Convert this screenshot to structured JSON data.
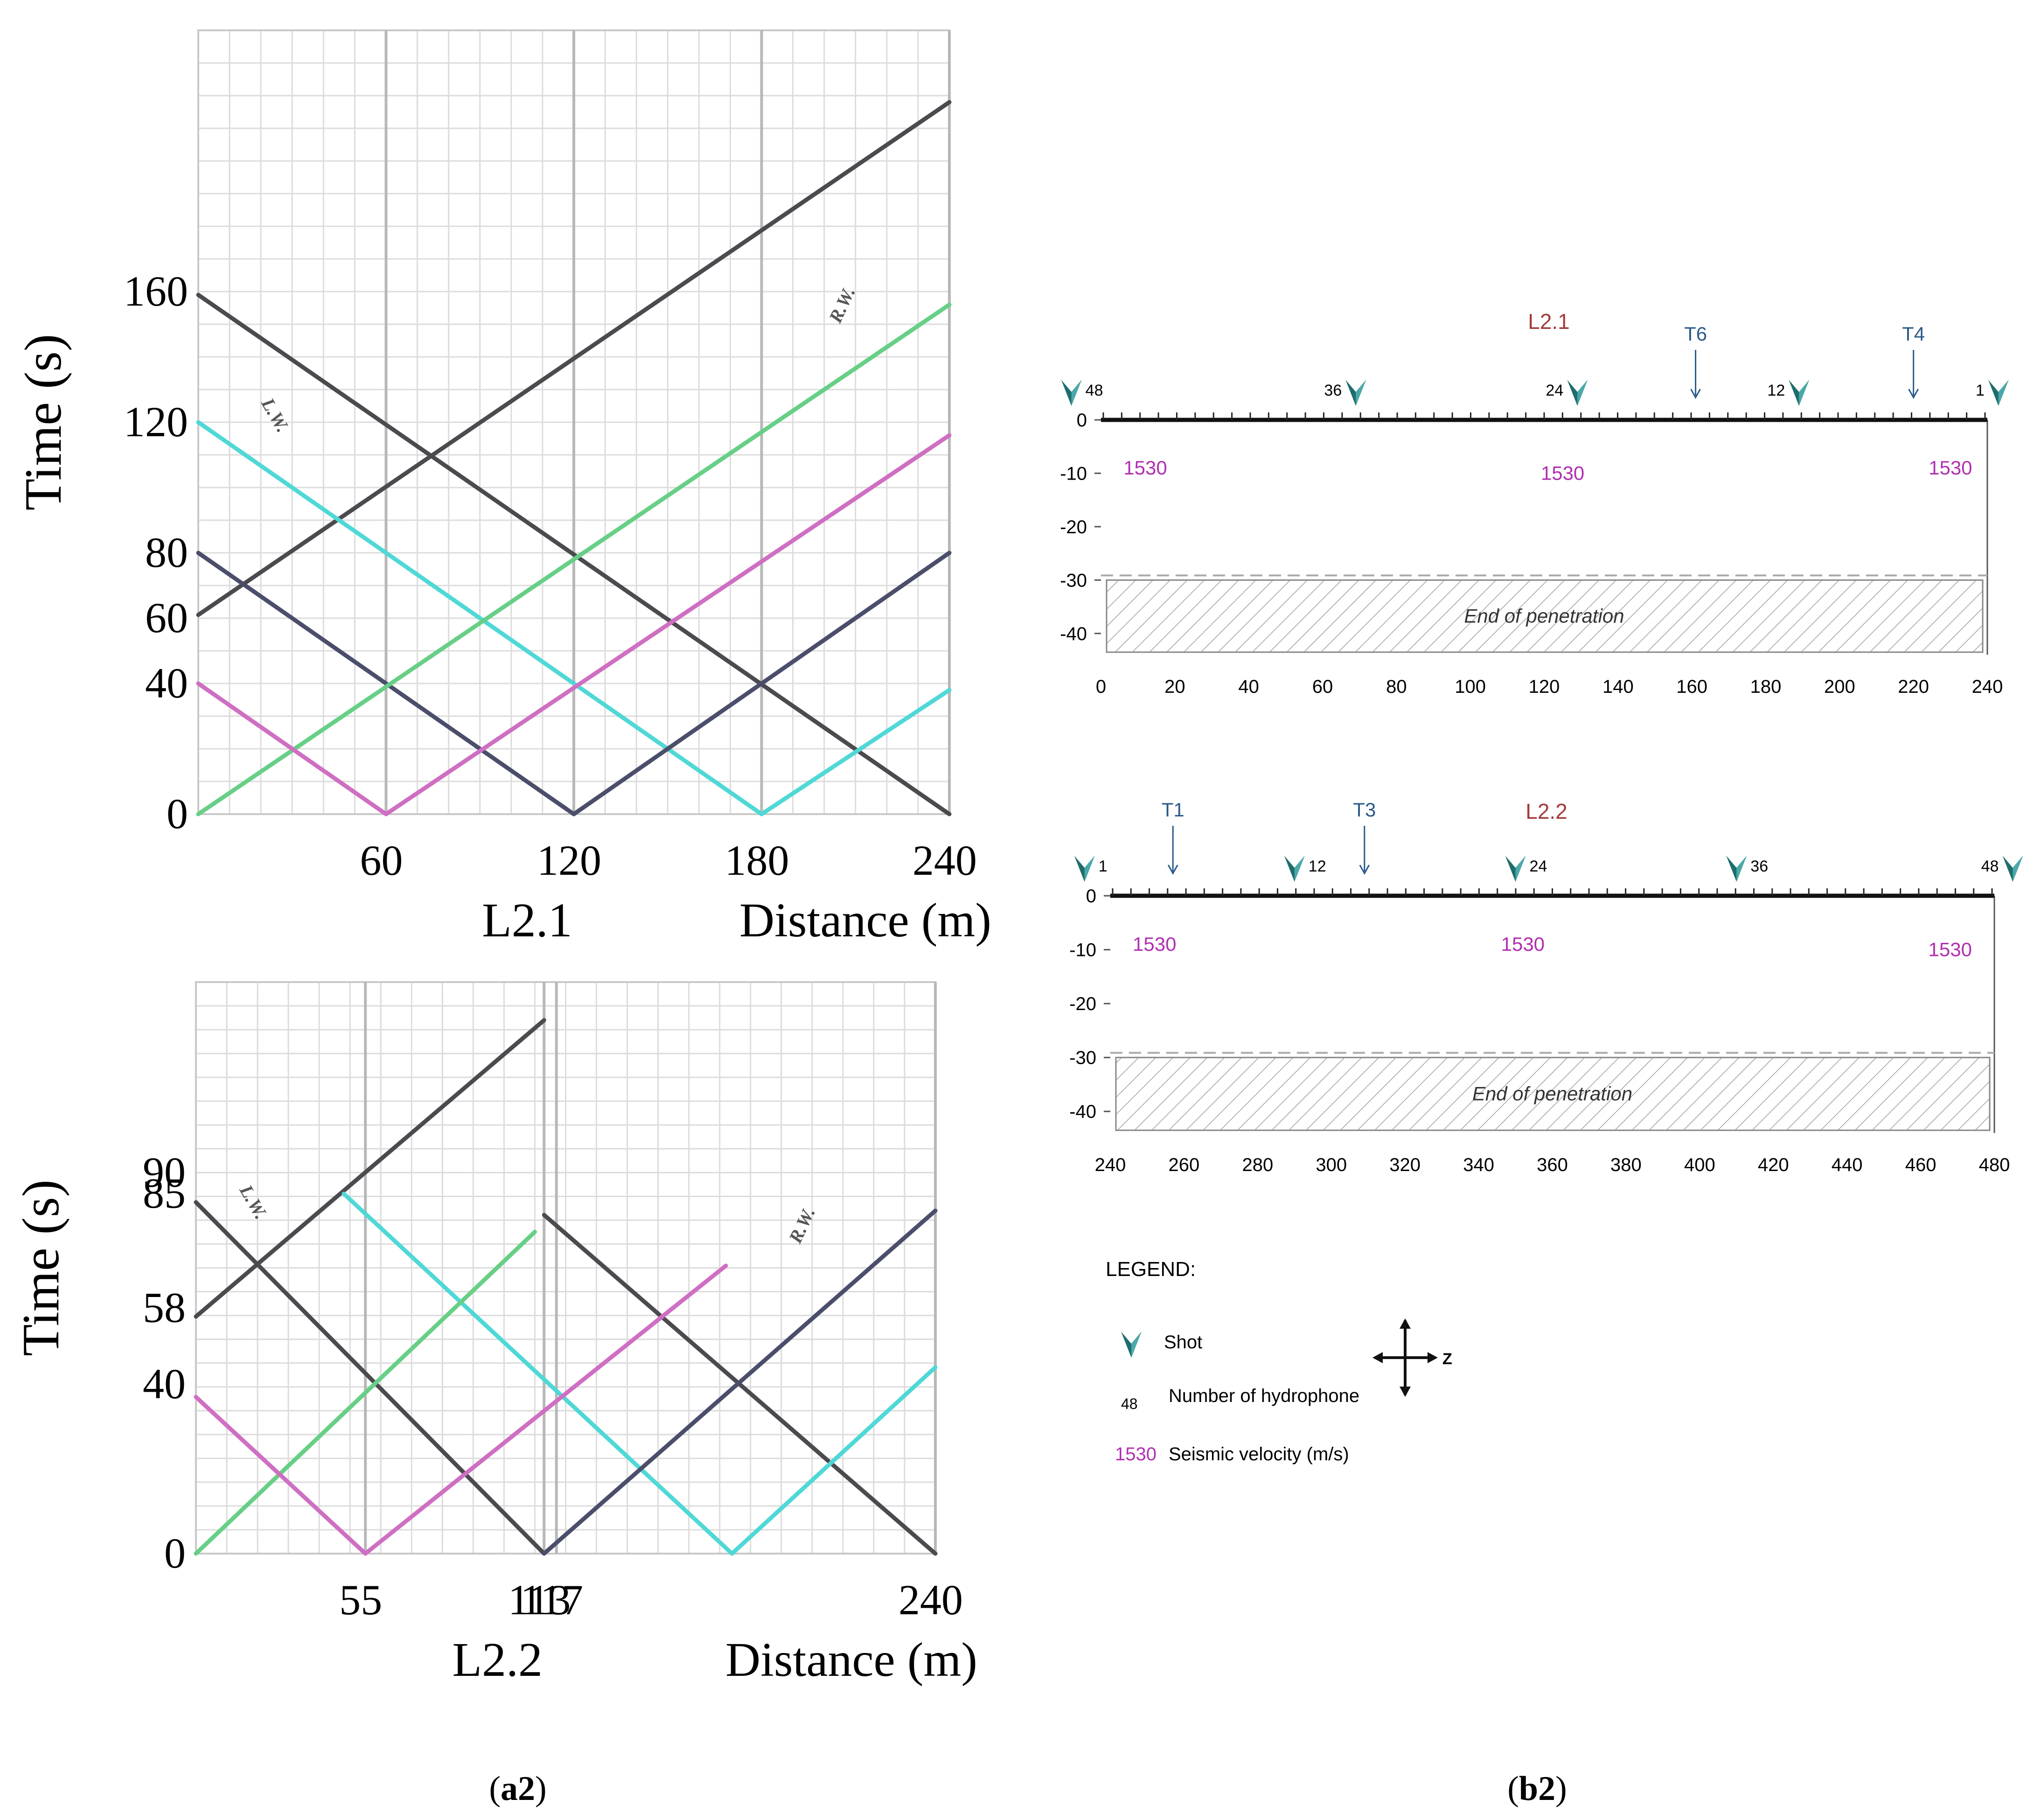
{
  "panel_labels": {
    "a": "(a2)",
    "b": "(b2)"
  },
  "colors": {
    "dark": "#4a4a4f",
    "navy": "#4b4e6b",
    "cyan": "#4fd8d6",
    "green": "#67cf86",
    "magenta": "#cf6fc2",
    "grid": "#dcdcdc",
    "vline": "#b8b8b8",
    "shot": "#1f6e6e",
    "velocity": "#b02fb0",
    "line_title": "#a33a3a",
    "marker_label": "#2a5a8a",
    "hatch": "#9a9a9a"
  },
  "chart_data": [
    {
      "type": "line",
      "id": "tt_L21",
      "title": "L2.1",
      "xlabel": "Distance (m)",
      "ylabel": "Time (s)",
      "xlim": [
        0,
        240
      ],
      "ylim": [
        0,
        240
      ],
      "x_ticks": [
        60,
        120,
        180,
        240
      ],
      "y_ticks": [
        0,
        40,
        60,
        80,
        120,
        160
      ],
      "annotations": [
        {
          "text": "L.W.",
          "x": 20,
          "y": 126,
          "rot": 60
        },
        {
          "text": "R.W.",
          "x": 205,
          "y": 150,
          "rot": -65
        }
      ],
      "series": [
        {
          "name": "dark-rising",
          "color": "dark",
          "x": [
            0,
            240
          ],
          "y": [
            61,
            218
          ]
        },
        {
          "name": "dark-falling",
          "color": "dark",
          "x": [
            0,
            240
          ],
          "y": [
            159,
            0
          ]
        },
        {
          "name": "cyan-falling",
          "color": "cyan",
          "x": [
            0,
            180
          ],
          "y": [
            120,
            0
          ]
        },
        {
          "name": "cyan-rising",
          "color": "cyan",
          "x": [
            180,
            240
          ],
          "y": [
            0,
            38
          ]
        },
        {
          "name": "navy-falling",
          "color": "navy",
          "x": [
            0,
            120
          ],
          "y": [
            80,
            0
          ]
        },
        {
          "name": "navy-rising",
          "color": "navy",
          "x": [
            120,
            240
          ],
          "y": [
            0,
            80
          ]
        },
        {
          "name": "green",
          "color": "green",
          "x": [
            0,
            240
          ],
          "y": [
            0,
            156
          ]
        },
        {
          "name": "magenta-falling",
          "color": "magenta",
          "x": [
            0,
            60
          ],
          "y": [
            40,
            0
          ]
        },
        {
          "name": "magenta-rising",
          "color": "magenta",
          "x": [
            60,
            240
          ],
          "y": [
            0,
            116
          ]
        }
      ]
    },
    {
      "type": "line",
      "id": "tt_L22",
      "title": "L2.2",
      "xlabel": "Distance (m)",
      "ylabel": "Time (s)",
      "xlim": [
        0,
        240
      ],
      "ylim": [
        0,
        135
      ],
      "x_ticks": [
        55,
        113,
        117,
        240
      ],
      "y_ticks": [
        0,
        40,
        58,
        85,
        90
      ],
      "annotations": [
        {
          "text": "L.W.",
          "x": 14,
          "y": 86,
          "rot": 60
        },
        {
          "text": "R.W.",
          "x": 196,
          "y": 73,
          "rot": -65
        }
      ],
      "series": [
        {
          "name": "dark-rising",
          "color": "dark",
          "x": [
            0,
            113
          ],
          "y": [
            56,
            126
          ]
        },
        {
          "name": "dark-falling",
          "color": "dark",
          "x": [
            0,
            113
          ],
          "y": [
            83,
            0
          ]
        },
        {
          "name": "dark-falling-2",
          "color": "dark",
          "x": [
            113,
            240
          ],
          "y": [
            80,
            0
          ]
        },
        {
          "name": "cyan-falling",
          "color": "cyan",
          "x": [
            48,
            174
          ],
          "y": [
            85,
            0
          ]
        },
        {
          "name": "cyan-rising",
          "color": "cyan",
          "x": [
            174,
            240
          ],
          "y": [
            0,
            44
          ]
        },
        {
          "name": "navy-rising",
          "color": "navy",
          "x": [
            113,
            240
          ],
          "y": [
            0,
            81
          ]
        },
        {
          "name": "green",
          "color": "green",
          "x": [
            0,
            110
          ],
          "y": [
            0,
            76
          ]
        },
        {
          "name": "magenta-falling",
          "color": "magenta",
          "x": [
            0,
            55
          ],
          "y": [
            37,
            0
          ]
        },
        {
          "name": "magenta-rising",
          "color": "magenta",
          "x": [
            55,
            172
          ],
          "y": [
            0,
            68
          ]
        }
      ]
    },
    {
      "type": "diagram",
      "id": "sec_L21",
      "title": "L2.1",
      "xlim": [
        0,
        240
      ],
      "ylim": [
        -45,
        0
      ],
      "x_ticks": [
        0,
        20,
        40,
        60,
        80,
        100,
        120,
        140,
        160,
        180,
        200,
        220,
        240
      ],
      "y_ticks": [
        0,
        -10,
        -20,
        -30,
        -40
      ],
      "end_of_penetration_depth": -30,
      "end_label": "End of penetration",
      "velocities": [
        {
          "x": 12,
          "y": -9,
          "text": "1530"
        },
        {
          "x": 125,
          "y": -10,
          "text": "1530"
        },
        {
          "x": 230,
          "y": -9,
          "text": "1530"
        }
      ],
      "shots": [
        {
          "x": -8,
          "label": "48"
        },
        {
          "x": 69,
          "label": "36"
        },
        {
          "x": 129,
          "label": "24"
        },
        {
          "x": 189,
          "label": "12"
        },
        {
          "x": 243,
          "label": "1"
        }
      ],
      "markers": [
        {
          "x": 161,
          "label": "T6"
        },
        {
          "x": 220,
          "label": "T4"
        }
      ]
    },
    {
      "type": "diagram",
      "id": "sec_L22",
      "title": "L2.2",
      "xlim": [
        240,
        480
      ],
      "ylim": [
        -45,
        0
      ],
      "x_ticks": [
        240,
        260,
        280,
        300,
        320,
        340,
        360,
        380,
        400,
        420,
        440,
        460,
        480
      ],
      "y_ticks": [
        0,
        -10,
        -20,
        -30,
        -40
      ],
      "end_of_penetration_depth": -30,
      "end_label": "End of penetration",
      "velocities": [
        {
          "x": 252,
          "y": -9,
          "text": "1530"
        },
        {
          "x": 352,
          "y": -9,
          "text": "1530"
        },
        {
          "x": 468,
          "y": -10,
          "text": "1530"
        }
      ],
      "shots": [
        {
          "x": 233,
          "label": "1"
        },
        {
          "x": 290,
          "label": "12"
        },
        {
          "x": 350,
          "label": "24"
        },
        {
          "x": 410,
          "label": "36"
        },
        {
          "x": 485,
          "label": "48"
        }
      ],
      "markers": [
        {
          "x": 257,
          "label": "T1"
        },
        {
          "x": 309,
          "label": "T3"
        }
      ]
    }
  ],
  "legend": {
    "title": "LEGEND:",
    "shot": "Shot",
    "hydrophone_number": "48",
    "hydrophone": "Number of hydrophone",
    "velocity_value": "1530",
    "velocity": "Seismic velocity (m/s)",
    "axis_z": "Z"
  }
}
